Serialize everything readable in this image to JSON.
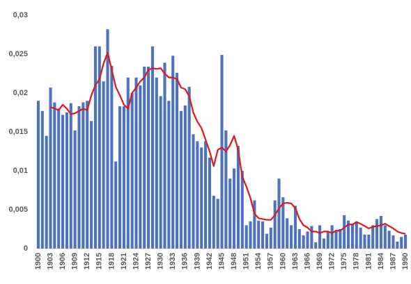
{
  "chart_data": {
    "type": "bar",
    "categories": [
      "1900",
      null,
      null,
      "1903",
      null,
      null,
      "1906",
      null,
      null,
      "1909",
      null,
      null,
      "1912",
      null,
      null,
      "1915",
      null,
      null,
      "1918",
      null,
      null,
      "1921",
      null,
      null,
      "1924",
      null,
      null,
      "1927",
      null,
      null,
      "1930",
      null,
      null,
      "1933",
      null,
      null,
      "1936",
      null,
      null,
      "1939",
      null,
      null,
      "1942",
      null,
      null,
      "1945",
      null,
      null,
      "1948",
      null,
      null,
      "1951",
      null,
      null,
      "1954",
      null,
      null,
      "1957",
      null,
      null,
      "1960",
      null,
      null,
      "1963",
      null,
      null,
      "1966",
      null,
      null,
      "1969",
      null,
      null,
      "1972",
      null,
      null,
      "1975",
      null,
      null,
      "1978",
      null,
      null,
      "1981",
      null,
      null,
      "1984",
      null,
      null,
      "1987",
      null,
      null,
      "1990"
    ],
    "series": [
      {
        "type": "bar",
        "color": "#4f72be",
        "values": [
          0.019,
          0.0177,
          0.0145,
          0.0207,
          0.0188,
          0.018,
          0.0172,
          0.0175,
          0.0187,
          0.0152,
          0.0183,
          0.0188,
          0.019,
          0.0164,
          0.026,
          0.026,
          0.0215,
          0.0282,
          0.0235,
          0.0112,
          0.0183,
          0.0183,
          0.022,
          0.02,
          0.022,
          0.021,
          0.0234,
          0.0234,
          0.026,
          0.022,
          0.0196,
          0.0239,
          0.019,
          0.0248,
          0.0226,
          0.0177,
          0.0184,
          0.0208,
          0.0147,
          0.0138,
          0.013,
          0.0138,
          0.0117,
          0.0068,
          0.0064,
          0.0249,
          0.0152,
          0.009,
          0.0103,
          0.0132,
          0.01,
          0.003,
          0.0035,
          0.0062,
          0.0036,
          0.0035,
          0.0019,
          0.0027,
          0.0062,
          0.009,
          0.0066,
          0.0039,
          0.003,
          0.0055,
          0.0025,
          0.0017,
          0.0022,
          0.0029,
          0.0008,
          0.003,
          0.0013,
          0.0022,
          0.003,
          0.0022,
          0.0025,
          0.0043,
          0.0036,
          0.0032,
          0.0035,
          0.0027,
          0.0018,
          0.0018,
          0.003,
          0.0038,
          0.0042,
          0.003,
          0.0023,
          0.0017,
          0.0009,
          0.0015,
          0.0018
        ]
      },
      {
        "type": "line",
        "color": "#e0161d",
        "values": [
          null,
          null,
          null,
          0.0182,
          0.018,
          0.0178,
          0.0185,
          0.018,
          0.0173,
          0.0174,
          0.0177,
          0.018,
          0.0178,
          0.0197,
          0.021,
          0.0218,
          0.0238,
          0.0252,
          0.023,
          0.0208,
          0.0197,
          0.0185,
          0.018,
          0.02,
          0.0207,
          0.0215,
          0.022,
          0.023,
          0.0232,
          0.0231,
          0.0232,
          0.0225,
          0.022,
          0.022,
          0.0218,
          0.0207,
          0.0205,
          0.0196,
          0.0175,
          0.0163,
          0.0155,
          0.014,
          0.0125,
          0.0106,
          0.0127,
          0.013,
          0.0125,
          0.0133,
          0.0145,
          0.0127,
          0.0092,
          0.008,
          0.0065,
          0.0045,
          0.0039,
          0.0038,
          0.0037,
          0.0037,
          0.0043,
          0.0052,
          0.0058,
          0.0059,
          0.0058,
          0.0052,
          0.0038,
          0.003,
          0.0027,
          0.0022,
          0.0022,
          0.002,
          0.0022,
          0.0022,
          0.002,
          0.0023,
          0.0023,
          0.0027,
          0.0031,
          0.0031,
          0.0034,
          0.0032,
          0.0029,
          0.0026,
          0.0028,
          0.0029,
          0.003,
          0.0032,
          0.0029,
          0.0026,
          0.0022,
          0.002,
          0.0019
        ]
      }
    ],
    "ylim": [
      0,
      0.03
    ],
    "yticks": [
      0,
      {
        "value": 0.005,
        "label": "0,005"
      },
      {
        "value": 0.01,
        "label": "0,01"
      },
      {
        "value": 0.015,
        "label": "0,015"
      },
      {
        "value": 0.02,
        "label": "0,02"
      },
      {
        "value": 0.025,
        "label": "0,025"
      },
      {
        "value": 0.03,
        "label": "0,03"
      }
    ],
    "grid": false
  }
}
